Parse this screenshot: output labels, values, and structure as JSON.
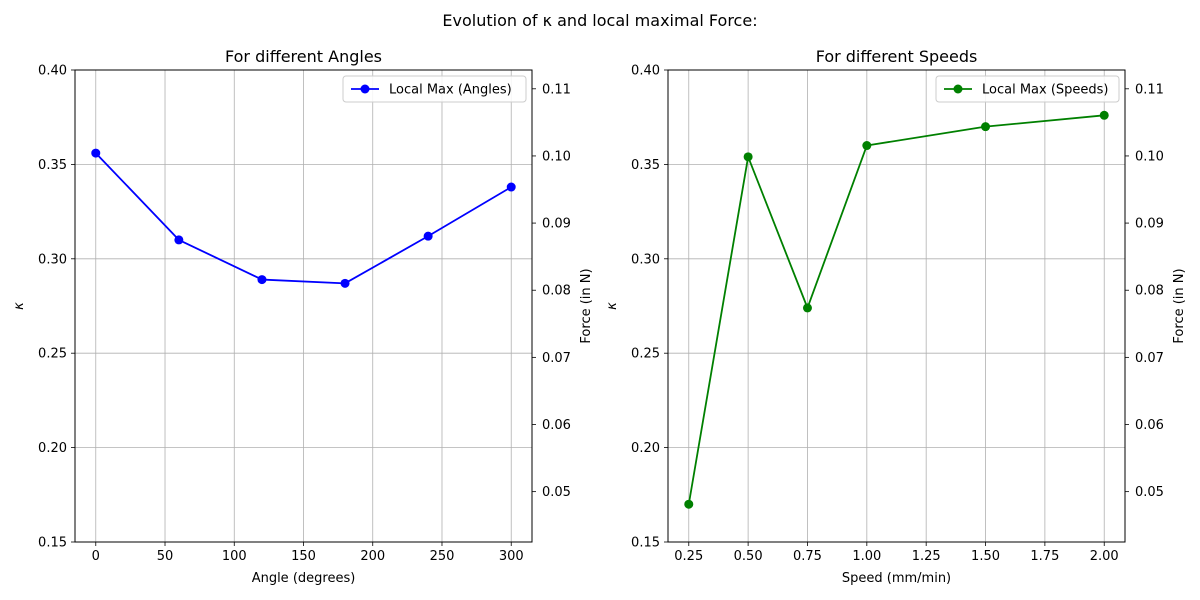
{
  "suptitle": "Evolution of κ and local maximal Force:",
  "chart_data": [
    {
      "type": "line",
      "title": "For different Angles",
      "xlabel": "Angle (degrees)",
      "ylabel": "κ",
      "ylabel_right": "Force (in N)",
      "xlim": [
        -15,
        315
      ],
      "ylim": [
        0.15,
        0.4
      ],
      "ylim_right": [
        0.0425,
        0.1128
      ],
      "xticks": [
        0,
        50,
        100,
        150,
        200,
        250,
        300
      ],
      "xtick_labels": [
        "0",
        "50",
        "100",
        "150",
        "200",
        "250",
        "300"
      ],
      "yticks": [
        0.15,
        0.2,
        0.25,
        0.3,
        0.35,
        0.4
      ],
      "ytick_labels": [
        "0.15",
        "0.20",
        "0.25",
        "0.30",
        "0.35",
        "0.40"
      ],
      "yticks_right": [
        0.05,
        0.06,
        0.07,
        0.08,
        0.09,
        0.1,
        0.11
      ],
      "ytick_labels_right": [
        "0.05",
        "0.06",
        "0.07",
        "0.08",
        "0.09",
        "0.10",
        "0.11"
      ],
      "grid": true,
      "legend_position": "top-right",
      "series": [
        {
          "name": "Local Max (Angles)",
          "color": "#0000ff",
          "marker": "circle",
          "x": [
            0,
            60,
            120,
            180,
            240,
            300
          ],
          "y": [
            0.356,
            0.31,
            0.289,
            0.287,
            0.312,
            0.338
          ]
        }
      ]
    },
    {
      "type": "line",
      "title": "For different Speeds",
      "xlabel": "Speed (mm/min)",
      "ylabel": "κ",
      "ylabel_right": "Force (in N)",
      "xlim": [
        0.1625,
        2.0875
      ],
      "ylim": [
        0.15,
        0.4
      ],
      "ylim_right": [
        0.0425,
        0.1128
      ],
      "xticks": [
        0.25,
        0.5,
        0.75,
        1.0,
        1.25,
        1.5,
        1.75,
        2.0
      ],
      "xtick_labels": [
        "0.25",
        "0.50",
        "0.75",
        "1.00",
        "1.25",
        "1.50",
        "1.75",
        "2.00"
      ],
      "yticks": [
        0.15,
        0.2,
        0.25,
        0.3,
        0.35,
        0.4
      ],
      "ytick_labels": [
        "0.15",
        "0.20",
        "0.25",
        "0.30",
        "0.35",
        "0.40"
      ],
      "yticks_right": [
        0.05,
        0.06,
        0.07,
        0.08,
        0.09,
        0.1,
        0.11
      ],
      "ytick_labels_right": [
        "0.05",
        "0.06",
        "0.07",
        "0.08",
        "0.09",
        "0.10",
        "0.11"
      ],
      "grid": true,
      "legend_position": "top-right",
      "series": [
        {
          "name": "Local Max (Speeds)",
          "color": "#008000",
          "marker": "circle",
          "x": [
            0.25,
            0.5,
            0.75,
            1.0,
            1.5,
            2.0
          ],
          "y": [
            0.17,
            0.354,
            0.274,
            0.36,
            0.37,
            0.376
          ]
        }
      ]
    }
  ]
}
